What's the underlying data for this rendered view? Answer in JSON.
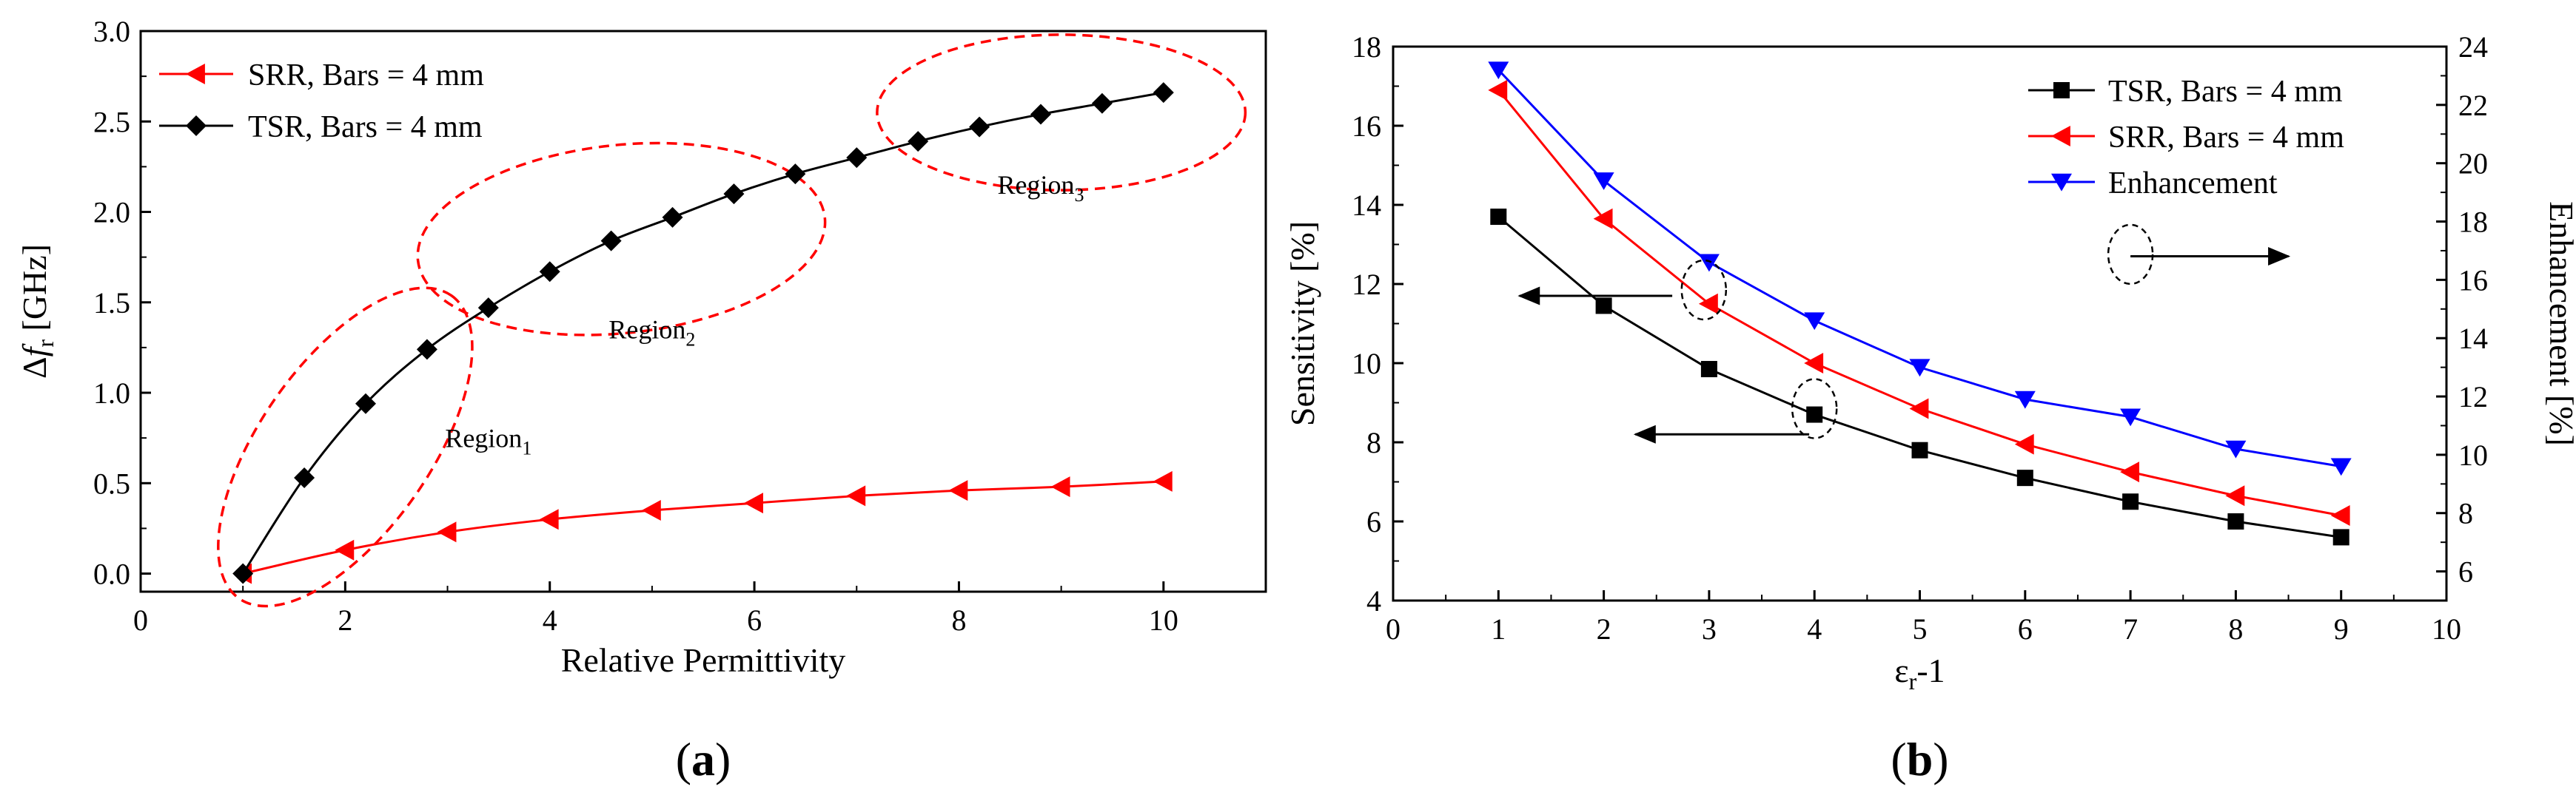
{
  "chart_data": [
    {
      "type": "line",
      "panel_label": "(a)",
      "panel_label_parts": [
        "(",
        "a",
        ")"
      ],
      "xlabel": "Relative Permittivity",
      "ylabel_parts": [
        "Δ",
        "f",
        "r",
        " [GHz]"
      ],
      "xlim": [
        0,
        11
      ],
      "ylim": [
        -0.1,
        3.0
      ],
      "xticks": [
        0,
        2,
        4,
        6,
        8,
        10
      ],
      "yticks": [
        "0.0",
        "0.5",
        "1.0",
        "1.5",
        "2.0",
        "2.5",
        "3.0"
      ],
      "legend_position": "top-left",
      "series": [
        {
          "name": "SRR, Bars = 4 mm",
          "color": "#ff0000",
          "marker": "triangle-left",
          "x": [
            1,
            2,
            3,
            4,
            5,
            6,
            7,
            8,
            9,
            10
          ],
          "values": [
            0.0,
            0.13,
            0.23,
            0.3,
            0.35,
            0.39,
            0.43,
            0.46,
            0.48,
            0.51
          ]
        },
        {
          "name": "TSR, Bars = 4 mm",
          "color": "#000000",
          "marker": "diamond",
          "x": [
            1.0,
            1.6,
            2.2,
            2.8,
            3.4,
            4.0,
            4.6,
            5.2,
            5.8,
            6.4,
            7.0,
            7.6,
            8.2,
            8.8,
            9.4,
            10.0
          ],
          "values": [
            0.0,
            0.53,
            0.94,
            1.24,
            1.47,
            1.67,
            1.84,
            1.97,
            2.1,
            2.21,
            2.3,
            2.39,
            2.47,
            2.54,
            2.6,
            2.66
          ]
        }
      ],
      "annotations": [
        {
          "text": "Region",
          "subscript": "1",
          "x": 3.4,
          "y": 0.7,
          "ellipse": {
            "cx": 2.0,
            "cy": 0.7,
            "rx": 1.0,
            "ry": 0.9,
            "rotate_deg": -55
          }
        },
        {
          "text": "Region",
          "subscript": "2",
          "x": 5.0,
          "y": 1.3,
          "ellipse": {
            "cx": 4.7,
            "cy": 1.85,
            "rx": 2.0,
            "ry": 0.52,
            "rotate_deg": -6
          }
        },
        {
          "text": "Region",
          "subscript": "3",
          "x": 8.8,
          "y": 2.1,
          "ellipse": {
            "cx": 9.0,
            "cy": 2.55,
            "rx": 1.8,
            "ry": 0.43,
            "rotate_deg": 0
          }
        }
      ]
    },
    {
      "type": "line",
      "panel_label": "(b)",
      "panel_label_parts": [
        "(",
        "b",
        ")"
      ],
      "xlabel_parts": [
        "ε",
        "r",
        "-1"
      ],
      "ylabel": "Sensitivity [%]",
      "y2label": "Enhancement [%]",
      "xlim": [
        0,
        10
      ],
      "ylim": [
        4,
        18
      ],
      "y2lim": [
        5,
        24
      ],
      "xticks": [
        0,
        1,
        2,
        3,
        4,
        5,
        6,
        7,
        8,
        9,
        10
      ],
      "yticks": [
        4,
        6,
        8,
        10,
        12,
        14,
        16,
        18
      ],
      "y2ticks": [
        6,
        8,
        10,
        12,
        14,
        16,
        18,
        20,
        22,
        24
      ],
      "legend_position": "top-right",
      "series": [
        {
          "name": "TSR, Bars = 4 mm",
          "color": "#000000",
          "marker": "square",
          "axis": "left",
          "x": [
            1,
            2,
            3,
            4,
            5,
            6,
            7,
            8,
            9
          ],
          "values": [
            13.7,
            11.45,
            9.85,
            8.7,
            7.8,
            7.1,
            6.5,
            6.0,
            5.6
          ]
        },
        {
          "name": "SRR, Bars = 4 mm",
          "color": "#ff0000",
          "marker": "triangle-left",
          "axis": "left",
          "x": [
            1,
            2,
            3,
            4,
            5,
            6,
            7,
            8,
            9
          ],
          "values": [
            16.9,
            13.65,
            11.5,
            10.0,
            8.85,
            7.95,
            7.25,
            6.65,
            6.15
          ]
        },
        {
          "name": "Enhancement",
          "color": "#0000ff",
          "marker": "triangle-down",
          "axis": "right",
          "x": [
            1,
            2,
            3,
            4,
            5,
            6,
            7,
            8,
            9
          ],
          "values": [
            23.2,
            19.4,
            16.6,
            14.6,
            13.0,
            11.9,
            11.3,
            10.2,
            9.6
          ]
        }
      ],
      "annotations": [
        {
          "type": "arrow-left",
          "x_from": 2.65,
          "x_to": 1.2,
          "y": 11.7
        },
        {
          "type": "arrow-left",
          "x_from": 3.95,
          "x_to": 2.3,
          "y": 8.2
        },
        {
          "type": "arrow-right",
          "x_from": 7.0,
          "x_to": 8.5,
          "y": 12.7
        },
        {
          "type": "dashed-circle",
          "x": 2.95,
          "y": 11.85
        },
        {
          "type": "dashed-circle",
          "x": 4.0,
          "y": 8.85
        },
        {
          "type": "dashed-circle",
          "x": 7.0,
          "y": 12.75
        }
      ]
    }
  ]
}
